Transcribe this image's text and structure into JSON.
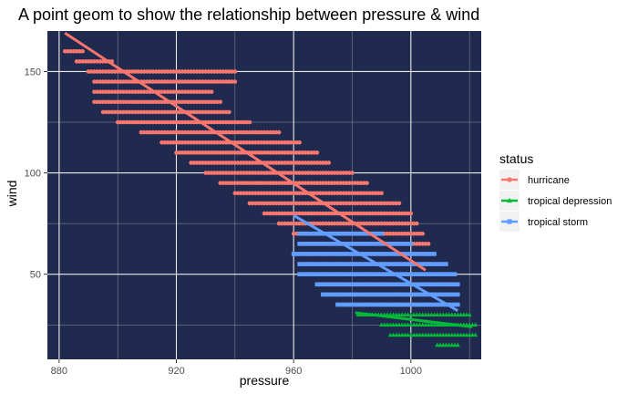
{
  "chart_data": {
    "type": "scatter",
    "title": "A point geom to show the relationship between pressure & wind",
    "xlabel": "pressure",
    "ylabel": "wind",
    "xlim": [
      876,
      1024
    ],
    "ylim": [
      8,
      170
    ],
    "x_ticks": [
      880,
      920,
      960,
      1000
    ],
    "y_ticks": [
      50,
      100,
      150
    ],
    "grid": true,
    "panel_background": "#1f2a4e",
    "grid_color": "#ebebeb",
    "legend": {
      "title": "status",
      "placement": "right",
      "entries": [
        {
          "name": "hurricane",
          "color": "#F8766D",
          "shape": "circle"
        },
        {
          "name": "tropical depression",
          "color": "#00BA38",
          "shape": "triangle"
        },
        {
          "name": "tropical storm",
          "color": "#619CFF",
          "shape": "square"
        }
      ]
    },
    "series": [
      {
        "name": "hurricane",
        "color": "#F8766D",
        "shape": "circle",
        "fit_line": [
          [
            882,
            169
          ],
          [
            1005,
            52
          ]
        ],
        "bands": [
          {
            "y": 160,
            "x": [
              882,
              888
            ]
          },
          {
            "y": 155,
            "x": [
              886,
              898
            ]
          },
          {
            "y": 150,
            "x": [
              890,
              940
            ]
          },
          {
            "y": 145,
            "x": [
              892,
              940
            ]
          },
          {
            "y": 140,
            "x": [
              892,
              932
            ]
          },
          {
            "y": 135,
            "x": [
              892,
              935
            ]
          },
          {
            "y": 130,
            "x": [
              895,
              938
            ]
          },
          {
            "y": 125,
            "x": [
              900,
              945
            ]
          },
          {
            "y": 120,
            "x": [
              908,
              955
            ]
          },
          {
            "y": 115,
            "x": [
              915,
              962
            ]
          },
          {
            "y": 110,
            "x": [
              920,
              968
            ]
          },
          {
            "y": 105,
            "x": [
              925,
              972
            ]
          },
          {
            "y": 100,
            "x": [
              930,
              980
            ]
          },
          {
            "y": 95,
            "x": [
              935,
              985
            ]
          },
          {
            "y": 90,
            "x": [
              940,
              990
            ]
          },
          {
            "y": 85,
            "x": [
              945,
              996
            ]
          },
          {
            "y": 80,
            "x": [
              950,
              1000
            ]
          },
          {
            "y": 75,
            "x": [
              955,
              1002
            ]
          },
          {
            "y": 70,
            "x": [
              960,
              1004
            ]
          },
          {
            "y": 65,
            "x": [
              964,
              1006
            ]
          }
        ]
      },
      {
        "name": "tropical storm",
        "color": "#619CFF",
        "shape": "square",
        "fit_line": [
          [
            960,
            79
          ],
          [
            1016,
            32
          ]
        ],
        "bands": [
          {
            "y": 70,
            "x": [
              962,
              990
            ]
          },
          {
            "y": 65,
            "x": [
              962,
              1000
            ]
          },
          {
            "y": 60,
            "x": [
              960,
              1008
            ]
          },
          {
            "y": 55,
            "x": [
              962,
              1012
            ]
          },
          {
            "y": 50,
            "x": [
              962,
              1015
            ]
          },
          {
            "y": 45,
            "x": [
              968,
              1016
            ]
          },
          {
            "y": 40,
            "x": [
              970,
              1016
            ]
          },
          {
            "y": 35,
            "x": [
              975,
              1016
            ]
          }
        ]
      },
      {
        "name": "tropical depression",
        "color": "#00BA38",
        "shape": "triangle",
        "fit_line": [
          [
            981,
            31
          ],
          [
            1021,
            24
          ]
        ],
        "bands": [
          {
            "y": 30,
            "x": [
              982,
              1020
            ]
          },
          {
            "y": 25,
            "x": [
              990,
              1022
            ]
          },
          {
            "y": 20,
            "x": [
              993,
              1022
            ]
          },
          {
            "y": 15,
            "x": [
              1009,
              1016
            ]
          }
        ]
      }
    ]
  }
}
